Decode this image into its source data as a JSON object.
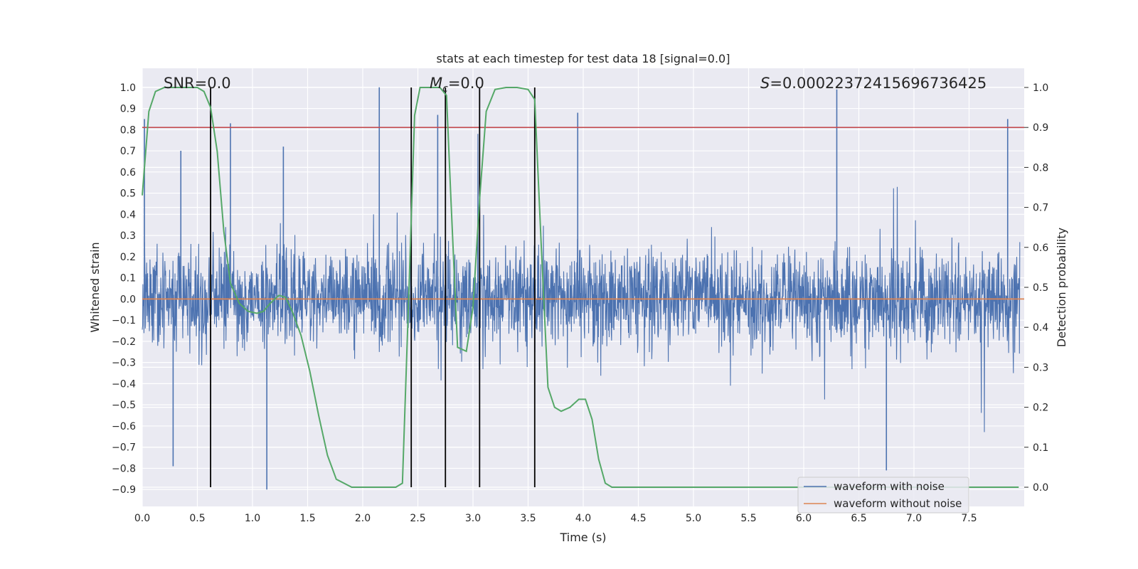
{
  "chart_data": {
    "type": "line",
    "title": "stats at each timestep for test data 18 [signal=0.0]",
    "xlabel": "Time (s)",
    "ylabel": "Whitened strain",
    "y2label": "Detection probability",
    "xlim": [
      0.0,
      8.0
    ],
    "ylim": [
      -0.98,
      1.09
    ],
    "y2lim": [
      -0.048,
      1.048
    ],
    "x_ticks": [
      "0.0",
      "0.5",
      "1.0",
      "1.5",
      "2.0",
      "2.5",
      "3.0",
      "3.5",
      "4.0",
      "4.5",
      "5.0",
      "5.5",
      "6.0",
      "6.5",
      "7.0",
      "7.5"
    ],
    "y_ticks": [
      "1.0",
      "0.9",
      "0.8",
      "0.7",
      "0.6",
      "0.5",
      "0.4",
      "0.3",
      "0.2",
      "0.1",
      "0.0",
      "−0.1",
      "−0.2",
      "−0.3",
      "−0.4",
      "−0.5",
      "−0.6",
      "−0.7",
      "−0.8",
      "−0.9"
    ],
    "y2_ticks": [
      "1.0",
      "0.9",
      "0.8",
      "0.7",
      "0.6",
      "0.5",
      "0.4",
      "0.3",
      "0.2",
      "0.1",
      "0.0"
    ],
    "grid": true,
    "legend_position": "lower-right",
    "annotations": {
      "snr": "SNR=0.0",
      "mc_symbol": "M",
      "mc_sub": "c",
      "mc_value": "=0.0",
      "s_symbol": "S",
      "s_value": "=0.00022372415696736425"
    },
    "series": [
      {
        "name": "waveform with noise",
        "axis": "left",
        "color": "#4c72b0",
        "envelope_note": "dense noise trace, max |strain| about 1.0",
        "peaks": [
          {
            "x": 0.02,
            "y": 0.85
          },
          {
            "x": 0.28,
            "y": -0.79
          },
          {
            "x": 0.35,
            "y": 0.7
          },
          {
            "x": 0.8,
            "y": 0.83
          },
          {
            "x": 1.13,
            "y": -0.9
          },
          {
            "x": 1.28,
            "y": 0.72
          },
          {
            "x": 2.15,
            "y": 1.0
          },
          {
            "x": 2.68,
            "y": 0.87
          },
          {
            "x": 3.95,
            "y": 0.88
          },
          {
            "x": 6.3,
            "y": 0.99
          },
          {
            "x": 6.75,
            "y": -0.81
          },
          {
            "x": 7.85,
            "y": 0.85
          }
        ]
      },
      {
        "name": "waveform without noise",
        "axis": "left",
        "color": "#dd8452",
        "x": [
          0.0,
          8.0
        ],
        "y": [
          0.0,
          0.0
        ]
      },
      {
        "name": "detection probability",
        "axis": "right",
        "color": "#55a868",
        "x": [
          0.0,
          0.06,
          0.12,
          0.2,
          0.3,
          0.4,
          0.5,
          0.56,
          0.62,
          0.68,
          0.74,
          0.8,
          0.88,
          0.96,
          1.04,
          1.1,
          1.16,
          1.24,
          1.3,
          1.36,
          1.44,
          1.52,
          1.6,
          1.68,
          1.76,
          1.9,
          2.1,
          2.3,
          2.36,
          2.42,
          2.47,
          2.52,
          2.6,
          2.7,
          2.76,
          2.8,
          2.86,
          2.94,
          3.0,
          3.06,
          3.12,
          3.2,
          3.3,
          3.4,
          3.5,
          3.56,
          3.62,
          3.68,
          3.74,
          3.8,
          3.88,
          3.96,
          4.02,
          4.08,
          4.14,
          4.2,
          4.26,
          4.4,
          5.0,
          6.0,
          7.0,
          7.95
        ],
        "y": [
          0.73,
          0.94,
          0.99,
          1.0,
          1.0,
          1.0,
          1.0,
          0.99,
          0.95,
          0.84,
          0.64,
          0.51,
          0.46,
          0.44,
          0.435,
          0.44,
          0.46,
          0.48,
          0.475,
          0.44,
          0.38,
          0.29,
          0.18,
          0.08,
          0.02,
          0.0,
          0.0,
          0.0,
          0.01,
          0.5,
          0.93,
          1.0,
          1.0,
          1.0,
          0.98,
          0.72,
          0.35,
          0.34,
          0.45,
          0.72,
          0.94,
          0.995,
          1.0,
          1.0,
          0.995,
          0.97,
          0.6,
          0.25,
          0.2,
          0.19,
          0.2,
          0.22,
          0.22,
          0.17,
          0.07,
          0.01,
          0.0,
          0.0,
          0.0,
          0.0,
          0.0,
          0.0
        ]
      }
    ],
    "reference_lines": [
      {
        "axis": "right",
        "y": 0.9,
        "color": "#c44e52"
      }
    ],
    "vertical_lines_x": [
      0.62,
      2.44,
      2.75,
      3.06,
      3.56
    ],
    "vertical_lines_range_right_axis": [
      0.0,
      1.0
    ]
  }
}
